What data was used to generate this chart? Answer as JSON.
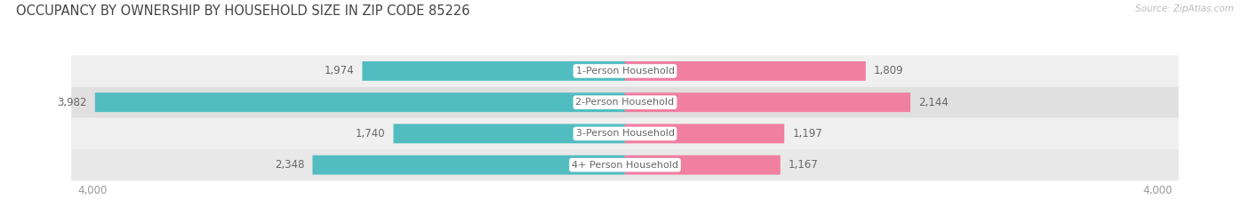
{
  "title": "OCCUPANCY BY OWNERSHIP BY HOUSEHOLD SIZE IN ZIP CODE 85226",
  "source": "Source: ZipAtlas.com",
  "categories": [
    "1-Person Household",
    "2-Person Household",
    "3-Person Household",
    "4+ Person Household"
  ],
  "owner_values": [
    1974,
    3982,
    1740,
    2348
  ],
  "renter_values": [
    1809,
    2144,
    1197,
    1167
  ],
  "owner_color": "#52bdc0",
  "renter_color": "#f07fa0",
  "row_bg_colors": [
    "#f0f0f0",
    "#e0e0e0",
    "#f0f0f0",
    "#e8e8e8"
  ],
  "axis_max": 4000,
  "label_color": "#666666",
  "title_color": "#444444",
  "axis_tick_color": "#999999",
  "label_fontsize": 8.5,
  "category_fontsize": 8.0,
  "title_fontsize": 10.5,
  "source_fontsize": 7.5
}
